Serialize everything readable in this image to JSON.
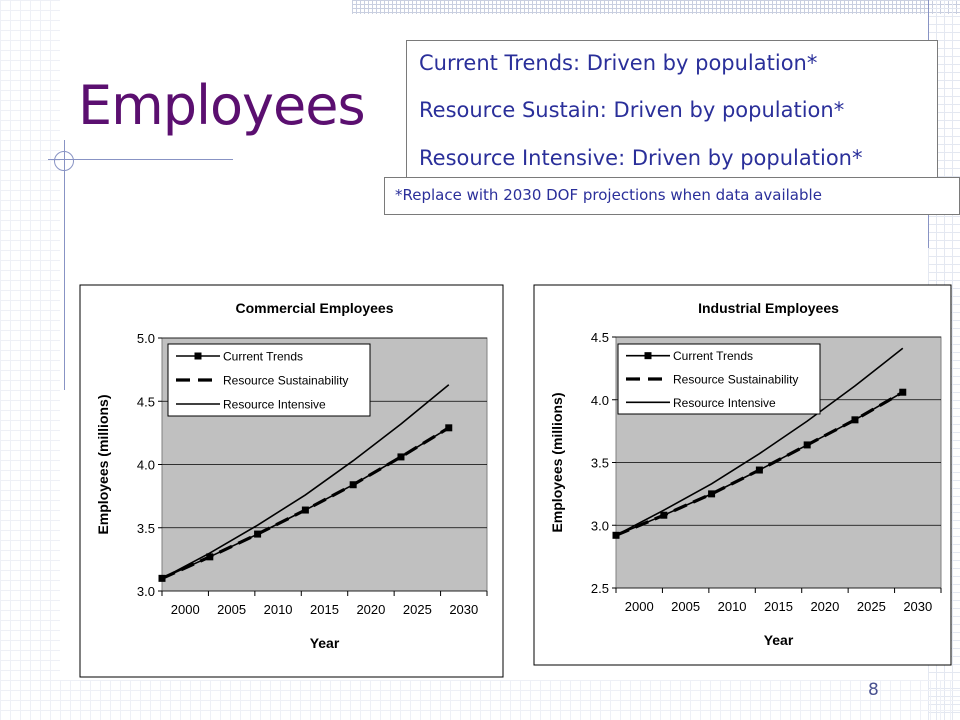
{
  "slide": {
    "title": "Employees",
    "page_number": "8",
    "info_lines": [
      "Current Trends: Driven by population*",
      "Resource Sustain: Driven by population*",
      "Resource Intensive: Driven by population*"
    ],
    "note": "*Replace with 2030 DOF projections when data available"
  },
  "colors": {
    "title": "#5b0f70",
    "text": "#2a2f9a",
    "plot_area": "#c0c0c0",
    "series": "#000000"
  },
  "chart_data": [
    {
      "type": "line",
      "title": "Commercial Employees",
      "xlabel": "Year",
      "ylabel": "Employees (millions)",
      "x_ticks": [
        "2000",
        "2005",
        "2010",
        "2015",
        "2020",
        "2025",
        "2030"
      ],
      "y_ticks": [
        "3.0",
        "3.5",
        "4.0",
        "4.5",
        "5.0"
      ],
      "xlim": [
        1998,
        2032
      ],
      "ylim": [
        3.0,
        5.0
      ],
      "grid": true,
      "legend_position": "top-left",
      "series": [
        {
          "name": "Current Trends",
          "style": "marker",
          "x": [
            1998,
            2003,
            2008,
            2013,
            2018,
            2023,
            2028
          ],
          "values": [
            3.1,
            3.27,
            3.45,
            3.64,
            3.84,
            4.06,
            4.29
          ]
        },
        {
          "name": "Resource Sustainability",
          "style": "dash",
          "x": [
            1998,
            2003,
            2008,
            2013,
            2018,
            2023,
            2028
          ],
          "values": [
            3.1,
            3.27,
            3.45,
            3.64,
            3.84,
            4.06,
            4.29
          ]
        },
        {
          "name": "Resource Intensive",
          "style": "solid",
          "x": [
            1998,
            2003,
            2008,
            2013,
            2018,
            2023,
            2028
          ],
          "values": [
            3.1,
            3.3,
            3.52,
            3.76,
            4.03,
            4.32,
            4.63
          ]
        }
      ]
    },
    {
      "type": "line",
      "title": "Industrial Employees",
      "xlabel": "Year",
      "ylabel": "Employees (millions)",
      "x_ticks": [
        "2000",
        "2005",
        "2010",
        "2015",
        "2020",
        "2025",
        "2030"
      ],
      "y_ticks": [
        "2.5",
        "3.0",
        "3.5",
        "4.0",
        "4.5"
      ],
      "xlim": [
        1998,
        2032
      ],
      "ylim": [
        2.5,
        4.5
      ],
      "grid": true,
      "legend_position": "top-left",
      "series": [
        {
          "name": "Current Trends",
          "style": "marker",
          "x": [
            1998,
            2003,
            2008,
            2013,
            2018,
            2023,
            2028
          ],
          "values": [
            2.92,
            3.08,
            3.25,
            3.44,
            3.64,
            3.84,
            4.06
          ]
        },
        {
          "name": "Resource Sustainability",
          "style": "dash",
          "x": [
            1998,
            2003,
            2008,
            2013,
            2018,
            2023,
            2028
          ],
          "values": [
            2.92,
            3.08,
            3.25,
            3.44,
            3.64,
            3.84,
            4.06
          ]
        },
        {
          "name": "Resource Intensive",
          "style": "solid",
          "x": [
            1998,
            2003,
            2008,
            2013,
            2018,
            2023,
            2028
          ],
          "values": [
            2.92,
            3.12,
            3.33,
            3.57,
            3.83,
            4.11,
            4.41
          ]
        }
      ]
    }
  ]
}
